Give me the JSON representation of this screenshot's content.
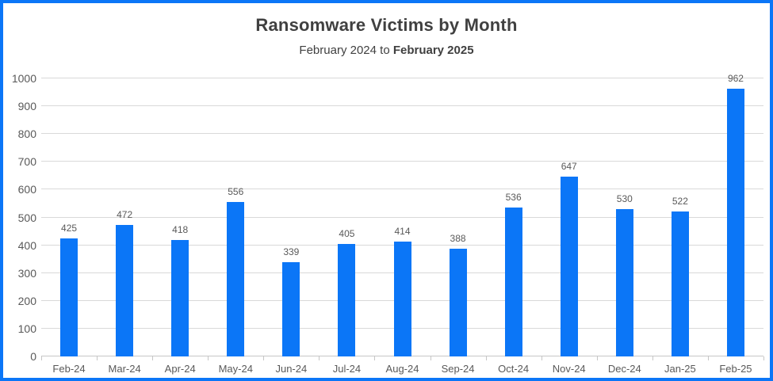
{
  "title": "Ransomware Victims by Month",
  "subtitle": {
    "regular": "February 2024 to ",
    "bold": "February 2025"
  },
  "colors": {
    "accent": "#0b76f7",
    "border": "#0b76f7",
    "gridline": "#d9d9d9",
    "axis": "#c6c6c6",
    "text": "#595959",
    "title": "#404040"
  },
  "chart_data": {
    "type": "bar",
    "title": "Ransomware Victims by Month",
    "subtitle": "February 2024 to February 2025",
    "categories": [
      "Feb-24",
      "Mar-24",
      "Apr-24",
      "May-24",
      "Jun-24",
      "Jul-24",
      "Aug-24",
      "Sep-24",
      "Oct-24",
      "Nov-24",
      "Dec-24",
      "Jan-25",
      "Feb-25"
    ],
    "values": [
      425,
      472,
      418,
      556,
      339,
      405,
      414,
      388,
      536,
      647,
      530,
      522,
      962
    ],
    "data_labels": true,
    "xlabel": "",
    "ylabel": "",
    "ylim": [
      0,
      1000
    ],
    "y_ticks": [
      0,
      100,
      200,
      300,
      400,
      500,
      600,
      700,
      800,
      900,
      1000
    ],
    "grid": true,
    "legend_position": "none"
  }
}
